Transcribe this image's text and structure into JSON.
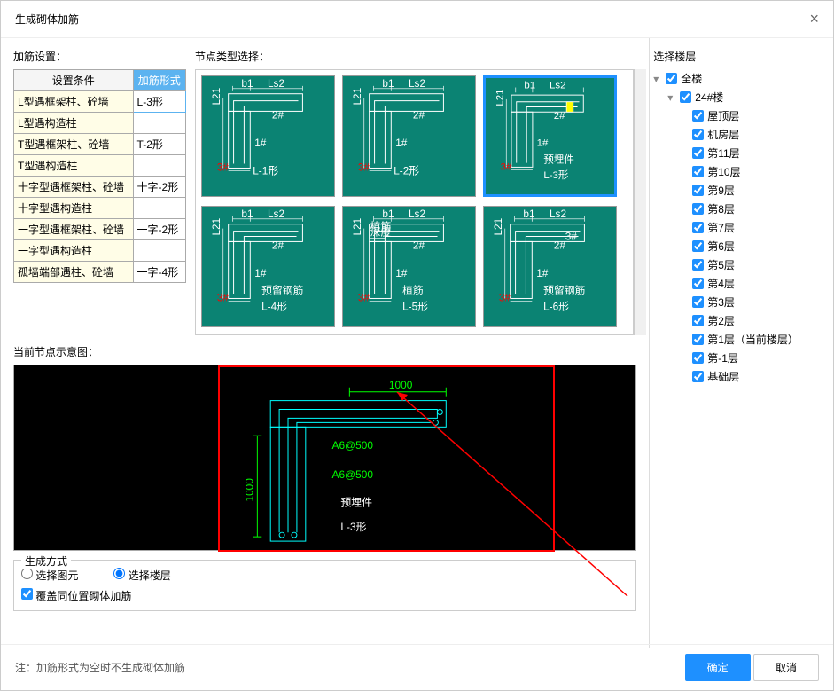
{
  "dialog": {
    "title": "生成砌体加筋"
  },
  "labels": {
    "rebarSettings": "加筋设置：",
    "nodeTypeSelect": "节点类型选择：",
    "floorSelect": "选择楼层",
    "currentDiagram": "当前节点示意图：",
    "genMode": "生成方式",
    "note": "注：加筋形式为空时不生成砌体加筋"
  },
  "tableHeaders": {
    "cond": "设置条件",
    "form": "加筋形式"
  },
  "tableRows": [
    {
      "cond": "L型遇框架柱、砼墙",
      "form": "L-3形"
    },
    {
      "cond": "L型遇构造柱",
      "form": ""
    },
    {
      "cond": "T型遇框架柱、砼墙",
      "form": "T-2形"
    },
    {
      "cond": "T型遇构造柱",
      "form": ""
    },
    {
      "cond": "十字型遇框架柱、砼墙",
      "form": "十字-2形"
    },
    {
      "cond": "十字型遇构造柱",
      "form": ""
    },
    {
      "cond": "一字型遇框架柱、砼墙",
      "form": "一字-2形"
    },
    {
      "cond": "一字型遇构造柱",
      "form": ""
    },
    {
      "cond": "孤墙端部遇柱、砼墙",
      "form": "一字-4形"
    }
  ],
  "nodeCards": [
    {
      "label": "L-1形",
      "sub": ""
    },
    {
      "label": "L-2形",
      "sub": ""
    },
    {
      "label": "L-3形",
      "sub": "预埋件",
      "selected": true
    },
    {
      "label": "L-4形",
      "sub": "预留钢筋"
    },
    {
      "label": "L-5形",
      "sub": "植筋"
    },
    {
      "label": "L-6形",
      "sub": "预留钢筋"
    }
  ],
  "diagram": {
    "dim1": "1000",
    "dim2": "1000",
    "reb1": "A6@500",
    "reb2": "A6@500",
    "title1": "预埋件",
    "title2": "L-3形"
  },
  "genMode": {
    "opt1": "选择图元",
    "opt2": "选择楼层",
    "cover": "覆盖同位置砌体加筋"
  },
  "buttons": {
    "ok": "确定",
    "cancel": "取消"
  },
  "tree": {
    "root": "全楼",
    "building": "24#楼",
    "floors": [
      "屋顶层",
      "机房层",
      "第11层",
      "第10层",
      "第9层",
      "第8层",
      "第7层",
      "第6层",
      "第5层",
      "第4层",
      "第3层",
      "第2层",
      "第1层（当前楼层）",
      "第-1层",
      "基础层"
    ]
  },
  "nodeDims": {
    "b1": "b1",
    "ls2": "Ls2",
    "l21": "L21",
    "n1": "1#",
    "n2": "2#",
    "n3": "3#",
    "植筋深度": "植筋\n深度"
  }
}
